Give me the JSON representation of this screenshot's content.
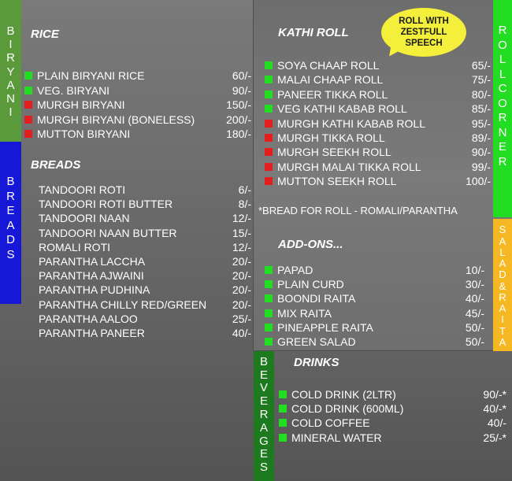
{
  "side_tabs": {
    "biryani": [
      "B",
      "I",
      "R",
      "Y",
      "A",
      "N",
      "I"
    ],
    "breads": [
      "B",
      "R",
      "E",
      "A",
      "D",
      "S"
    ],
    "roll_corner": [
      "R",
      "O",
      "L",
      "L",
      "C",
      "O",
      "R",
      "N",
      "E",
      "R"
    ],
    "salad_raita": [
      "S",
      "A",
      "L",
      "A",
      "D",
      "&",
      "R",
      "A",
      "I",
      "T",
      "A"
    ],
    "beverages": [
      "B",
      "E",
      "V",
      "E",
      "R",
      "A",
      "G",
      "E",
      "S"
    ]
  },
  "colors": {
    "veg": "#22dd22",
    "nonveg": "#e41e1e",
    "biryani_tab": "#5a9a3a",
    "breads_tab": "#1717d8",
    "roll_tab": "#22dd22",
    "salad_tab": "#f5b722",
    "beverages_tab": "#1e7a1e",
    "bubble": "#f4ef3a"
  },
  "rice": {
    "title": "RICE",
    "items": [
      {
        "name": "PLAIN BIRYANI RICE",
        "price": "60/-",
        "type": "veg"
      },
      {
        "name": "VEG. BIRYANI",
        "price": "90/-",
        "type": "veg"
      },
      {
        "name": "MURGH BIRYANI",
        "price": "150/-",
        "type": "nonveg"
      },
      {
        "name": "MURGH BIRYANI (BONELESS)",
        "price": "200/-",
        "type": "nonveg"
      },
      {
        "name": "MUTTON BIRYANI",
        "price": "180/-",
        "type": "nonveg"
      }
    ]
  },
  "breads": {
    "title": "BREADS",
    "items": [
      {
        "name": "TANDOORI ROTI",
        "price": "6/-"
      },
      {
        "name": "TANDOORI ROTI BUTTER",
        "price": "8/-"
      },
      {
        "name": "TANDOORI NAAN",
        "price": "12/-"
      },
      {
        "name": "TANDOORI NAAN BUTTER",
        "price": "15/-"
      },
      {
        "name": "ROMALI ROTI",
        "price": "12/-"
      },
      {
        "name": "PARANTHA LACCHA",
        "price": "20/-"
      },
      {
        "name": "PARANTHA AJWAINI",
        "price": "20/-"
      },
      {
        "name": "PARANTHA PUDHINA",
        "price": "20/-"
      },
      {
        "name": "PARANTHA CHILLY RED/GREEN",
        "price": "20/-"
      },
      {
        "name": "PARANTHA AALOO",
        "price": "25/-"
      },
      {
        "name": "PARANTHA PANEER",
        "price": "40/-"
      }
    ]
  },
  "kathi_roll": {
    "title": "KATHI ROLL",
    "bubble": "ROLL WITH ZESTFULL SPEECH",
    "items": [
      {
        "name": "SOYA CHAAP ROLL",
        "price": "65/-",
        "type": "veg"
      },
      {
        "name": "MALAI CHAAP ROLL",
        "price": "75/-",
        "type": "veg"
      },
      {
        "name": "PANEER TIKKA ROLL",
        "price": "80/-",
        "type": "veg"
      },
      {
        "name": "VEG KATHI KABAB ROLL",
        "price": "85/-",
        "type": "veg"
      },
      {
        "name": "MURGH KATHI KABAB ROLL",
        "price": "95/-",
        "type": "nonveg"
      },
      {
        "name": "MURGH TIKKA ROLL",
        "price": "89/-",
        "type": "nonveg"
      },
      {
        "name": "MURGH SEEKH ROLL",
        "price": "90/-",
        "type": "nonveg"
      },
      {
        "name": "MURGH MALAI TIKKA ROLL",
        "price": "99/-",
        "type": "nonveg"
      },
      {
        "name": "MUTTON SEEKH ROLL",
        "price": "100/-",
        "type": "nonveg"
      }
    ],
    "note": "*BREAD FOR ROLL - ROMALI/PARANTHA"
  },
  "addons": {
    "title": "ADD-ONS...",
    "items": [
      {
        "name": "PAPAD",
        "price": "10/-",
        "type": "veg"
      },
      {
        "name": "PLAIN CURD",
        "price": "30/-",
        "type": "veg"
      },
      {
        "name": "BOONDI RAITA",
        "price": "40/-",
        "type": "veg"
      },
      {
        "name": "MIX RAITA",
        "price": "45/-",
        "type": "veg"
      },
      {
        "name": "PINEAPPLE RAITA",
        "price": "50/-",
        "type": "veg"
      },
      {
        "name": "GREEN SALAD",
        "price": "50/-",
        "type": "veg"
      }
    ]
  },
  "drinks": {
    "title": "DRINKS",
    "items": [
      {
        "name": "COLD DRINK (2LTR)",
        "price": "90/-*",
        "type": "veg"
      },
      {
        "name": "COLD DRINK (600ML)",
        "price": "40/-*",
        "type": "veg"
      },
      {
        "name": "COLD COFFEE",
        "price": "40/-",
        "type": "veg"
      },
      {
        "name": "MINERAL WATER",
        "price": "25/-*",
        "type": "veg"
      }
    ]
  }
}
